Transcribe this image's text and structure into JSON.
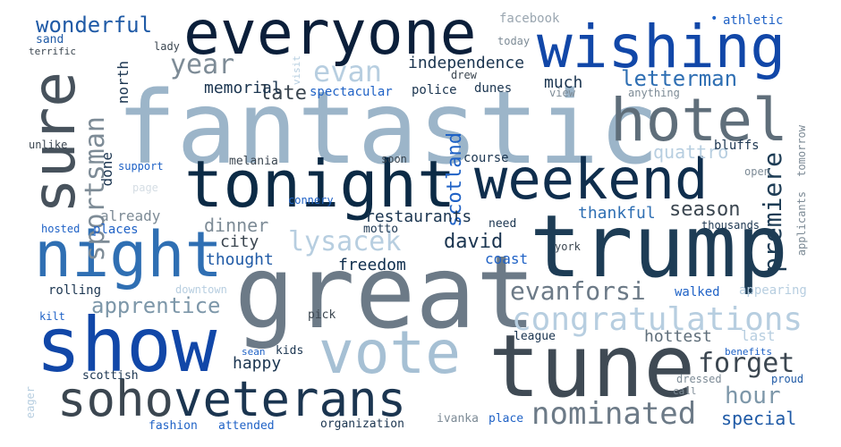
{
  "palette": {
    "navy": "#0b1f3a",
    "deep_blue": "#1147a8",
    "royal_blue": "#1f62c6",
    "steel_blue": "#2f6fb3",
    "slate": "#47525c",
    "slate_gray": "#6c7a87",
    "pale_steel": "#9cb5c9",
    "light_blue": "#b7cee0",
    "gray_blue": "#7d97a9"
  },
  "words": [
    "fantastic",
    "great",
    "trump",
    "tonight",
    "show",
    "tune",
    "everyone",
    "weekend",
    "night",
    "wishing",
    "vote",
    "hotel",
    "veterans",
    "sure",
    "soho",
    "nominated",
    "congratulations",
    "evanforsi",
    "lysacek",
    "year",
    "forget",
    "evan",
    "sportsman",
    "premiere",
    "wonderful",
    "letterman",
    "apprentice",
    "hour",
    "late",
    "independence",
    "david",
    "season",
    "memorial",
    "scotland",
    "special",
    "restaurants",
    "freedom",
    "hottest",
    "dinner",
    "city",
    "thought",
    "thankful",
    "quattro",
    "already",
    "north",
    "much",
    "happy",
    "coast",
    "done",
    "course",
    "bluffs",
    "dunes",
    "police",
    "spectacular",
    "facebook",
    "athletic",
    "sand",
    "terrific",
    "lady",
    "visit",
    "today",
    "drew",
    "view",
    "anything",
    "unlike",
    "melania",
    "soon",
    "support",
    "page",
    "connery",
    "motto",
    "need",
    "open",
    "tomorrow",
    "applicants",
    "thousands",
    "york",
    "hosted",
    "places",
    "rolling",
    "downtown",
    "walked",
    "appearing",
    "kilt",
    "pick",
    "league",
    "last",
    "benefits",
    "sean",
    "kids",
    "scottish",
    "dressed",
    "proud",
    "call",
    "eager",
    "fashion",
    "attended",
    "organization",
    "ivanka",
    "place"
  ]
}
